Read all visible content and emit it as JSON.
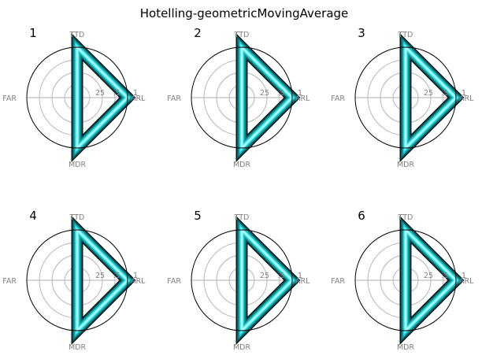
{
  "figure": {
    "title": "Hotelling-geometricMovingAverage"
  },
  "chart_data": {
    "type": "radar",
    "axes": [
      "TTD",
      "ARL",
      "MDR",
      "FAR"
    ],
    "radial_ticks": [
      "25",
      ".5",
      "1"
    ],
    "radial_tick_values": [
      0.25,
      0.5,
      0.75,
      1.0
    ],
    "rlim": [
      0,
      1
    ],
    "grid": true,
    "colors": {
      "outline": "#000000",
      "grid": "#b0b0b0",
      "fill_edge": "#0a1a1a",
      "fill_mid": "#1fd6dc",
      "fill_center": "#c8ffff",
      "label": "#808080"
    },
    "panels": [
      {
        "label": "1",
        "values": {
          "TTD": 1.0,
          "ARL": 1.0,
          "MDR": 1.0,
          "FAR": 0.0
        }
      },
      {
        "label": "2",
        "values": {
          "TTD": 1.0,
          "ARL": 1.0,
          "MDR": 1.0,
          "FAR": 0.0
        }
      },
      {
        "label": "3",
        "values": {
          "TTD": 1.0,
          "ARL": 1.0,
          "MDR": 1.0,
          "FAR": 0.0
        }
      },
      {
        "label": "4",
        "values": {
          "TTD": 1.0,
          "ARL": 1.0,
          "MDR": 1.0,
          "FAR": 0.0
        }
      },
      {
        "label": "5",
        "values": {
          "TTD": 1.0,
          "ARL": 1.0,
          "MDR": 1.0,
          "FAR": 0.0
        }
      },
      {
        "label": "6",
        "values": {
          "TTD": 1.0,
          "ARL": 1.0,
          "MDR": 1.0,
          "FAR": 0.0
        }
      }
    ]
  }
}
